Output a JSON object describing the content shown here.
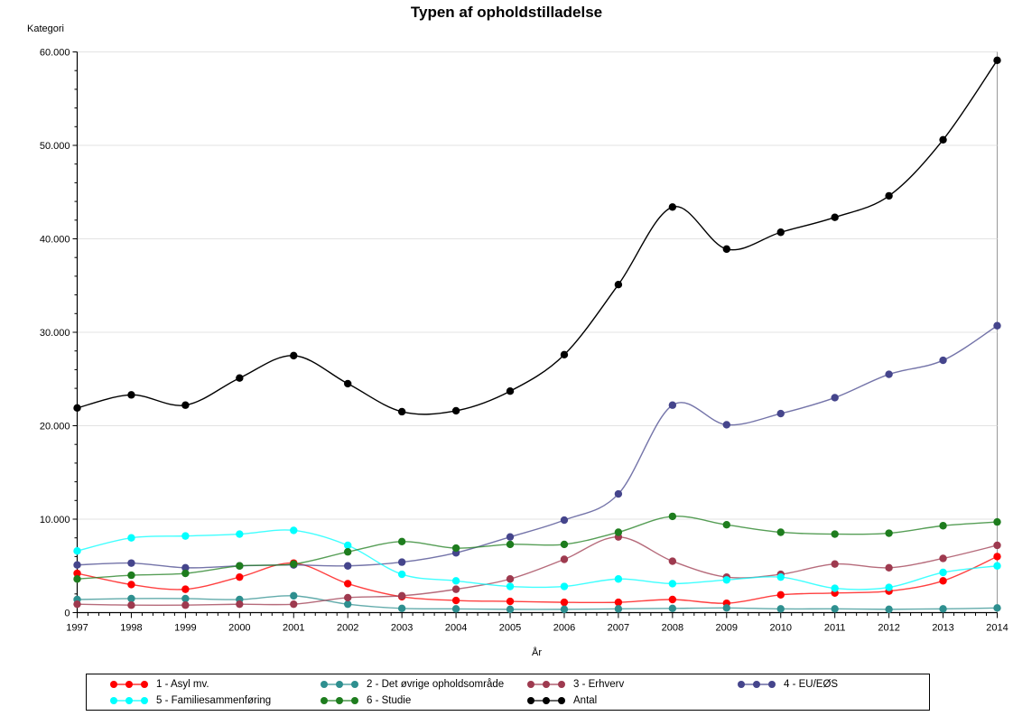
{
  "chart_data": {
    "type": "line",
    "title": "Typen af opholdstilladelse",
    "ylabel": "Kategori",
    "xlabel": "År",
    "x": [
      1997,
      1998,
      1999,
      2000,
      2001,
      2002,
      2003,
      2004,
      2005,
      2006,
      2007,
      2008,
      2009,
      2010,
      2011,
      2012,
      2013,
      2014
    ],
    "ylim": [
      0,
      60000
    ],
    "y_tick_interval": 10000,
    "y_ticks": [
      "0",
      "10.000",
      "20.000",
      "30.000",
      "40.000",
      "50.000",
      "60.000"
    ],
    "y_minor_per_major": 4,
    "x_minor_per_major": 4,
    "grid": true,
    "legend_position": "bottom",
    "interpolation": "spline",
    "style": {
      "grid_color": "#E3E3E3",
      "frame_color": "#999999",
      "axis_color": "#000000",
      "text_color": "#000000"
    },
    "series": [
      {
        "name": "1 - Asyl mv.",
        "color": "#FF0000",
        "values": [
          4200,
          3000,
          2500,
          3800,
          5300,
          3100,
          1700,
          1300,
          1200,
          1100,
          1100,
          1400,
          1000,
          1900,
          2100,
          2300,
          3400,
          6000
        ]
      },
      {
        "name": "2 - Det øvrige opholdsområde",
        "color": "#2E8F8F",
        "values": [
          1400,
          1500,
          1500,
          1400,
          1800,
          900,
          450,
          400,
          350,
          350,
          400,
          450,
          500,
          400,
          400,
          350,
          400,
          500
        ]
      },
      {
        "name": "3 - Erhverv",
        "color": "#9E3A4F",
        "values": [
          900,
          800,
          800,
          900,
          900,
          1600,
          1800,
          2500,
          3600,
          5700,
          8100,
          5500,
          3800,
          4100,
          5200,
          4800,
          5800,
          7200
        ]
      },
      {
        "name": "4 - EU/EØS",
        "color": "#45458C",
        "values": [
          5100,
          5300,
          4800,
          5000,
          5100,
          5000,
          5400,
          6400,
          8100,
          9900,
          12700,
          22200,
          20100,
          21300,
          23000,
          25500,
          27000,
          30700
        ]
      },
      {
        "name": "5 - Familiesammenføring",
        "color": "#00FFFF",
        "values": [
          6600,
          8000,
          8200,
          8400,
          8800,
          7200,
          4100,
          3400,
          2800,
          2800,
          3600,
          3100,
          3500,
          3800,
          2600,
          2700,
          4300,
          5000
        ]
      },
      {
        "name": "6 - Studie",
        "color": "#1E7D1E",
        "values": [
          3600,
          4000,
          4200,
          5000,
          5200,
          6500,
          7600,
          6900,
          7300,
          7300,
          8600,
          10300,
          9400,
          8600,
          8400,
          8500,
          9300,
          9700
        ]
      },
      {
        "name": "Antal",
        "color": "#000000",
        "values": [
          21900,
          23300,
          22200,
          25100,
          27500,
          24500,
          21500,
          21600,
          23700,
          27600,
          35100,
          43400,
          38900,
          40700,
          42300,
          44600,
          50600,
          59100
        ]
      }
    ]
  }
}
